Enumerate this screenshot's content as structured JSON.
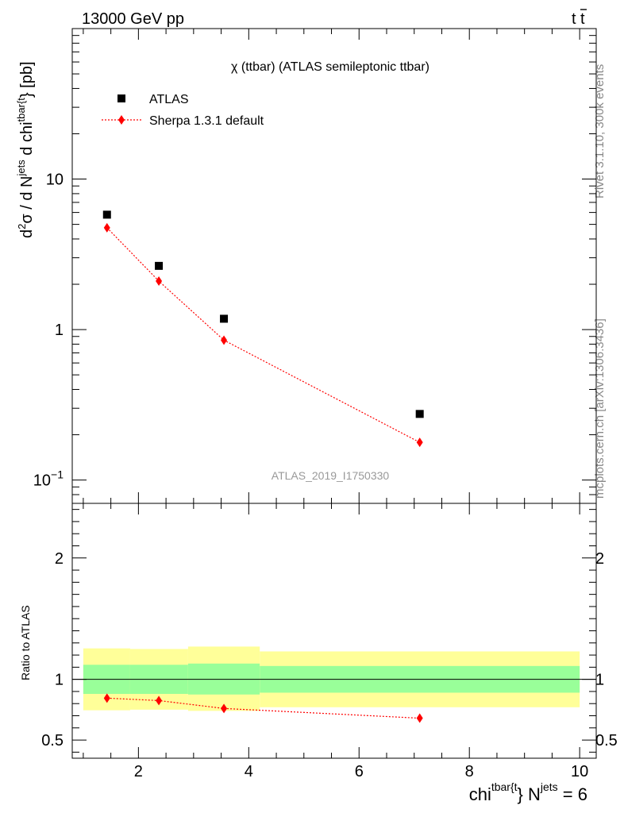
{
  "header": {
    "left": "13000 GeV pp",
    "right_base": "t",
    "right_bar": "t"
  },
  "side": {
    "rivet": "Rivet 3.1.10,  300k events",
    "mcplots": "mcplots.cern.ch [arXiv:1306.3436]"
  },
  "chart_data": [
    {
      "type": "scatter",
      "panel": "main",
      "title": "χ (ttbar) (ATLAS semileptonic ttbar)",
      "watermark": "ATLAS_2019_I1750330",
      "ylabel": {
        "p1": "d",
        "p1sup": "2",
        "p2": "σ /  d N",
        "p2sup": "jets",
        "p3": " d chi",
        "p3sup": "tbar{t",
        "p4": "} [pb]"
      },
      "yscale": "log",
      "ylim": [
        0.07,
        100
      ],
      "xlim": [
        0.8,
        10.3
      ],
      "yticks": [
        {
          "v": 0.1,
          "base": "10",
          "exp": "−1"
        },
        {
          "v": 1,
          "base": "1",
          "exp": ""
        },
        {
          "v": 10,
          "base": "10",
          "exp": ""
        }
      ],
      "legend": {
        "placement": "top-left"
      },
      "series": [
        {
          "name": "ATLAS",
          "marker": "square",
          "color": "#000000",
          "x": [
            1.43,
            2.37,
            3.55,
            7.1
          ],
          "y": [
            5.8,
            2.65,
            1.18,
            0.275
          ]
        },
        {
          "name": "Sherpa 1.3.1 default",
          "marker": "diamond",
          "color": "#ff0000",
          "x": [
            1.43,
            2.37,
            3.55,
            7.1
          ],
          "y": [
            4.75,
            2.1,
            0.85,
            0.178
          ]
        }
      ]
    },
    {
      "type": "scatter",
      "panel": "ratio",
      "ylabel": "Ratio to ATLAS",
      "xlabel": {
        "p1": "chi",
        "p1sup": "tbar{t",
        "p2": "} N",
        "p2sup": "jets",
        "p3": " = 6"
      },
      "ylim": [
        0.35,
        2.45
      ],
      "xlim": [
        0.8,
        10.3
      ],
      "xticks": [
        2,
        4,
        6,
        8,
        10
      ],
      "yticks": [
        0.5,
        1,
        2
      ],
      "bands": [
        {
          "x0": 1.0,
          "x1": 1.85,
          "green": [
            0.88,
            1.12
          ],
          "yellow": [
            0.745,
            1.255
          ]
        },
        {
          "x0": 1.85,
          "x1": 2.9,
          "green": [
            0.88,
            1.12
          ],
          "yellow": [
            0.75,
            1.25
          ]
        },
        {
          "x0": 2.9,
          "x1": 4.2,
          "green": [
            0.875,
            1.13
          ],
          "yellow": [
            0.74,
            1.27
          ]
        },
        {
          "x0": 4.2,
          "x1": 10.0,
          "green": [
            0.89,
            1.11
          ],
          "yellow": [
            0.77,
            1.23
          ]
        }
      ],
      "series": [
        {
          "name": "Sherpa 1.3.1 default",
          "color": "#ff0000",
          "x": [
            1.43,
            2.37,
            3.55,
            7.1
          ],
          "y": [
            0.845,
            0.825,
            0.76,
            0.68
          ]
        }
      ]
    }
  ]
}
